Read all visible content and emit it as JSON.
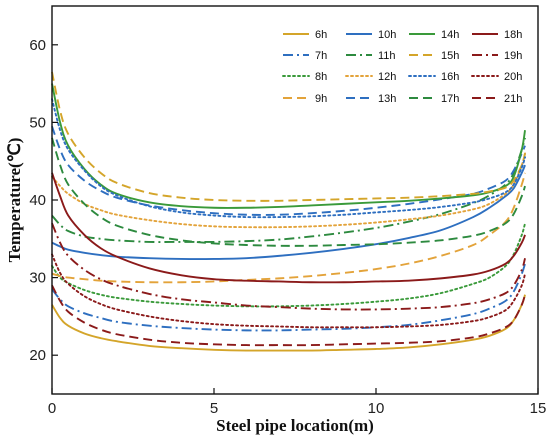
{
  "chart_data": {
    "type": "line",
    "title": "",
    "xlabel": "Steel pipe location(m)",
    "ylabel": "Temperature(℃)",
    "xlim": [
      0,
      15
    ],
    "ylim": [
      15,
      65
    ],
    "xticks": [
      0,
      5,
      10,
      15
    ],
    "yticks": [
      20,
      30,
      40,
      50,
      60
    ],
    "grid": false,
    "legend_position": "top-right",
    "x": [
      0,
      0.25,
      0.5,
      1,
      1.5,
      2,
      3,
      4,
      5,
      6,
      7,
      8,
      9,
      10,
      11,
      12,
      13,
      13.5,
      14,
      14.25,
      14.5,
      14.6
    ],
    "series": [
      {
        "name": "6h",
        "color": "#d4a52a",
        "dash": "solid",
        "values": [
          26.5,
          24.8,
          23.8,
          22.8,
          22.2,
          21.8,
          21.2,
          20.9,
          20.7,
          20.6,
          20.6,
          20.6,
          20.7,
          20.8,
          21.0,
          21.4,
          22.0,
          22.5,
          23.4,
          24.5,
          26.5,
          27.8
        ]
      },
      {
        "name": "7h",
        "color": "#2e6fc0",
        "dash": "dashdot",
        "values": [
          28.5,
          27.2,
          26.3,
          25.4,
          24.8,
          24.3,
          23.8,
          23.5,
          23.3,
          23.2,
          23.2,
          23.3,
          23.4,
          23.6,
          23.9,
          24.5,
          25.3,
          26.0,
          27.0,
          28.2,
          30.5,
          31.8
        ]
      },
      {
        "name": "8h",
        "color": "#3a9a3a",
        "dash": "dot",
        "values": [
          31.5,
          30.0,
          29.3,
          28.4,
          27.8,
          27.4,
          26.9,
          26.6,
          26.4,
          26.3,
          26.3,
          26.4,
          26.6,
          26.9,
          27.3,
          28.0,
          29.2,
          30.0,
          31.5,
          33.0,
          35.5,
          37.0
        ]
      },
      {
        "name": "9h",
        "color": "#e3a33a",
        "dash": "dash",
        "values": [
          30.5,
          30.2,
          30.0,
          29.8,
          29.6,
          29.5,
          29.4,
          29.4,
          29.5,
          29.7,
          29.9,
          30.2,
          30.6,
          31.1,
          31.8,
          32.8,
          34.2,
          35.5,
          37.2,
          39.0,
          42.0,
          43.5
        ]
      },
      {
        "name": "10h",
        "color": "#2e6fc0",
        "dash": "solid",
        "values": [
          34.5,
          34.0,
          33.6,
          33.2,
          32.9,
          32.7,
          32.5,
          32.4,
          32.4,
          32.5,
          32.8,
          33.2,
          33.7,
          34.3,
          35.1,
          36.1,
          37.8,
          39.0,
          40.5,
          41.5,
          43.5,
          44.5
        ]
      },
      {
        "name": "11h",
        "color": "#2d8a3f",
        "dash": "dashdot",
        "values": [
          38.0,
          36.8,
          36.0,
          35.3,
          35.0,
          34.8,
          34.6,
          34.6,
          34.6,
          34.7,
          34.9,
          35.3,
          35.8,
          36.4,
          37.2,
          38.2,
          39.6,
          40.6,
          42.0,
          43.5,
          46.5,
          48.0
        ]
      },
      {
        "name": "12h",
        "color": "#e3a33a",
        "dash": "dot",
        "values": [
          43.0,
          41.8,
          40.8,
          39.5,
          38.7,
          38.1,
          37.4,
          36.9,
          36.6,
          36.5,
          36.5,
          36.6,
          36.8,
          37.1,
          37.5,
          38.0,
          38.8,
          39.5,
          40.8,
          42.0,
          44.5,
          46.0
        ]
      },
      {
        "name": "13h",
        "color": "#2e6fc0",
        "dash": "dash",
        "values": [
          49.5,
          46.5,
          44.5,
          42.5,
          41.2,
          40.3,
          39.3,
          38.7,
          38.3,
          38.1,
          38.1,
          38.3,
          38.6,
          39.0,
          39.5,
          40.1,
          40.8,
          41.5,
          42.5,
          43.8,
          46.0,
          47.0
        ]
      },
      {
        "name": "14h",
        "color": "#3a9a3a",
        "dash": "solid",
        "values": [
          55.0,
          50.0,
          47.0,
          44.0,
          42.0,
          40.8,
          39.7,
          39.2,
          39.0,
          39.0,
          39.1,
          39.3,
          39.5,
          39.7,
          39.9,
          40.2,
          40.6,
          41.0,
          41.8,
          43.0,
          46.5,
          49.0
        ]
      },
      {
        "name": "15h",
        "color": "#d4a52a",
        "dash": "dash",
        "values": [
          56.5,
          51.5,
          48.5,
          45.5,
          43.5,
          42.2,
          40.9,
          40.3,
          40.0,
          39.9,
          39.9,
          40.0,
          40.1,
          40.2,
          40.3,
          40.5,
          40.8,
          41.1,
          41.6,
          42.5,
          44.5,
          46.0
        ]
      },
      {
        "name": "16h",
        "color": "#2e6fc0",
        "dash": "dot",
        "values": [
          53.0,
          49.0,
          46.5,
          43.8,
          41.8,
          40.6,
          39.2,
          38.4,
          38.0,
          37.8,
          37.8,
          37.9,
          38.1,
          38.4,
          38.7,
          39.1,
          39.7,
          40.2,
          41.0,
          42.0,
          44.2,
          45.5
        ]
      },
      {
        "name": "17h",
        "color": "#2d8a3f",
        "dash": "dash",
        "values": [
          48.0,
          44.5,
          42.0,
          39.5,
          37.8,
          36.7,
          35.5,
          34.8,
          34.4,
          34.2,
          34.1,
          34.1,
          34.2,
          34.3,
          34.5,
          34.8,
          35.4,
          36.0,
          37.0,
          38.2,
          40.5,
          41.8
        ]
      },
      {
        "name": "18h",
        "color": "#8b1a1a",
        "dash": "solid",
        "values": [
          43.5,
          40.5,
          38.0,
          35.5,
          33.8,
          32.7,
          31.2,
          30.3,
          29.8,
          29.6,
          29.5,
          29.4,
          29.4,
          29.5,
          29.6,
          29.9,
          30.4,
          30.9,
          31.8,
          32.8,
          34.5,
          35.5
        ]
      },
      {
        "name": "19h",
        "color": "#8b1a1a",
        "dash": "dashdot",
        "values": [
          37.0,
          34.5,
          32.8,
          31.0,
          29.8,
          29.0,
          27.9,
          27.2,
          26.8,
          26.4,
          26.2,
          26.0,
          25.9,
          25.9,
          26.0,
          26.2,
          26.7,
          27.2,
          28.0,
          29.0,
          31.0,
          32.5
        ]
      },
      {
        "name": "20h",
        "color": "#8b1a1a",
        "dash": "dot",
        "values": [
          33.0,
          30.6,
          29.2,
          27.6,
          26.6,
          25.9,
          25.0,
          24.4,
          24.0,
          23.8,
          23.7,
          23.6,
          23.6,
          23.6,
          23.7,
          23.9,
          24.4,
          24.9,
          25.8,
          27.0,
          29.0,
          30.5
        ]
      },
      {
        "name": "21h",
        "color": "#8b1a1a",
        "dash": "dash",
        "values": [
          29.0,
          27.0,
          25.6,
          24.2,
          23.3,
          22.7,
          22.0,
          21.6,
          21.4,
          21.3,
          21.3,
          21.3,
          21.4,
          21.5,
          21.6,
          21.8,
          22.3,
          22.8,
          23.6,
          24.5,
          26.5,
          27.8
        ]
      }
    ]
  }
}
